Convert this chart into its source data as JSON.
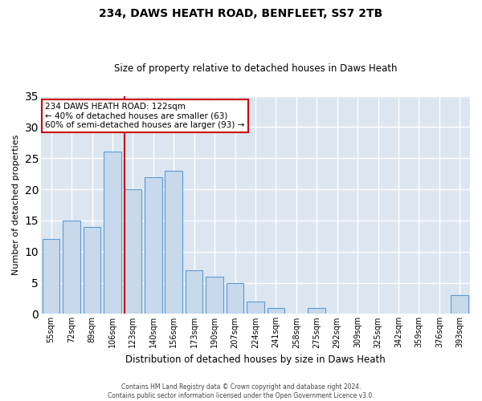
{
  "title1": "234, DAWS HEATH ROAD, BENFLEET, SS7 2TB",
  "title2": "Size of property relative to detached houses in Daws Heath",
  "xlabel": "Distribution of detached houses by size in Daws Heath",
  "ylabel": "Number of detached properties",
  "categories": [
    "55sqm",
    "72sqm",
    "89sqm",
    "106sqm",
    "123sqm",
    "140sqm",
    "156sqm",
    "173sqm",
    "190sqm",
    "207sqm",
    "224sqm",
    "241sqm",
    "258sqm",
    "275sqm",
    "292sqm",
    "309sqm",
    "325sqm",
    "342sqm",
    "359sqm",
    "376sqm",
    "393sqm"
  ],
  "values": [
    12,
    15,
    14,
    26,
    20,
    22,
    23,
    7,
    6,
    5,
    2,
    1,
    0,
    1,
    0,
    0,
    0,
    0,
    0,
    0,
    3
  ],
  "bar_facecolor": "#c8d9eb",
  "bar_edgecolor": "#5b9bd5",
  "grid_color": "#ffffff",
  "bg_color": "#dce6f1",
  "property_label": "234 DAWS HEATH ROAD: 122sqm",
  "annotation_line1": "← 40% of detached houses are smaller (63)",
  "annotation_line2": "60% of semi-detached houses are larger (93) →",
  "vline_color": "#cc0000",
  "vline_x_index": 4,
  "annotation_box_edgecolor": "#cc0000",
  "ylim": [
    0,
    35
  ],
  "yticks": [
    0,
    5,
    10,
    15,
    20,
    25,
    30,
    35
  ],
  "footer1": "Contains HM Land Registry data © Crown copyright and database right 2024.",
  "footer2": "Contains public sector information licensed under the Open Government Licence v3.0."
}
